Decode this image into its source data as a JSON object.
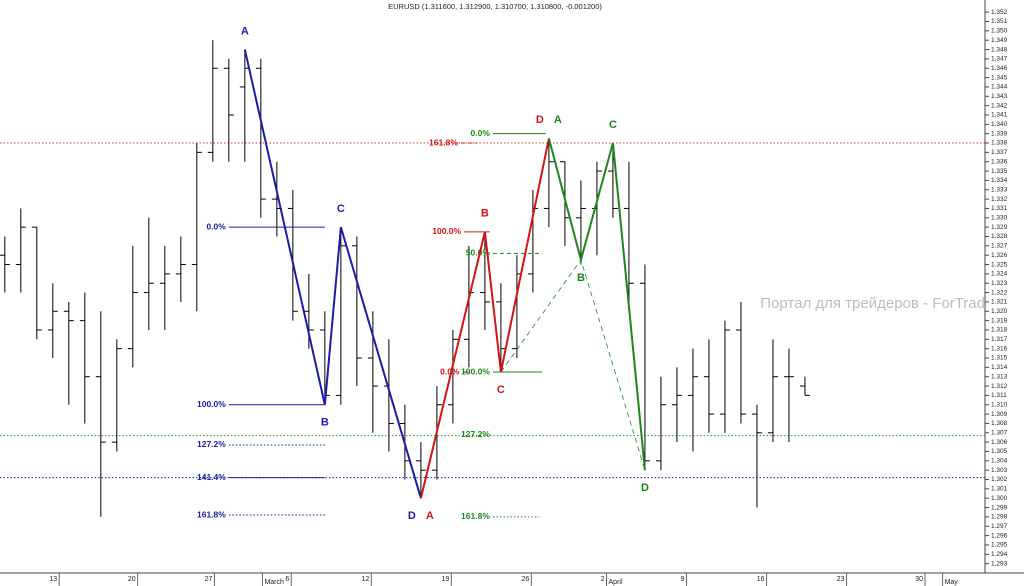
{
  "chart_data": {
    "type": "ohlc",
    "title": "EURUSD (1.311600, 1.312900, 1.310700, 1.310800, -0.001200)",
    "watermark": "Портал для трейдеров - ForTrader.ru",
    "color": "#000000",
    "xlim": [
      -0.3,
      61.25
    ],
    "ylim": [
      1.292,
      1.3533
    ],
    "xticks": [
      {
        "value": 3.4,
        "label": "13"
      },
      {
        "value": 8.3,
        "label": "20"
      },
      {
        "value": 13.1,
        "label": "27"
      },
      {
        "value": 17.9,
        "label": "6"
      },
      {
        "value": 22.9,
        "label": "12"
      },
      {
        "value": 27.9,
        "label": "19"
      },
      {
        "value": 32.9,
        "label": "26"
      },
      {
        "value": 37.6,
        "label": "2"
      },
      {
        "value": 42.6,
        "label": "9"
      },
      {
        "value": 47.6,
        "label": "16"
      },
      {
        "value": 52.6,
        "label": "23"
      },
      {
        "value": 57.5,
        "label": "30"
      }
    ],
    "month_ticks": [
      {
        "value": 16.1,
        "label": "March"
      },
      {
        "value": 37.6,
        "label": "April"
      },
      {
        "value": 58.6,
        "label": "May"
      }
    ],
    "yticks": [
      1.293,
      1.294,
      1.295,
      1.296,
      1.297,
      1.298,
      1.299,
      {
        "value": 1.3,
        "label": "1.300"
      },
      1.301,
      1.302,
      1.303,
      1.304,
      1.305,
      1.306,
      1.307,
      1.308,
      1.309,
      {
        "value": 1.31,
        "label": "1.310"
      },
      1.311,
      1.312,
      1.313,
      1.314,
      1.315,
      1.316,
      1.317,
      1.318,
      1.319,
      {
        "value": 1.32,
        "label": "1.320"
      },
      1.321,
      1.322,
      1.323,
      1.324,
      1.325,
      1.326,
      1.327,
      1.328,
      1.329,
      {
        "value": 1.33,
        "label": "1.330"
      },
      1.331,
      1.332,
      1.333,
      1.334,
      1.335,
      1.336,
      1.337,
      1.338,
      1.339,
      {
        "value": 1.34,
        "label": "1.340"
      },
      1.341,
      1.342,
      1.343,
      1.344,
      1.345,
      1.346,
      1.347,
      1.348,
      1.349,
      {
        "value": 1.35,
        "label": "1.350"
      },
      1.351,
      1.352
    ],
    "x": [
      0,
      1,
      2,
      3,
      4,
      5,
      6,
      7,
      8,
      9,
      10,
      11,
      12,
      13,
      14,
      15,
      16,
      17,
      18,
      19,
      20,
      21,
      22,
      23,
      24,
      25,
      26,
      27,
      28,
      29,
      30,
      31,
      32,
      33,
      34,
      35,
      36,
      37,
      38,
      39,
      40,
      41,
      42,
      43,
      44,
      45,
      46,
      47,
      48,
      49,
      50
    ],
    "bars": [
      [
        1.326,
        1.328,
        1.322,
        1.325
      ],
      [
        1.325,
        1.331,
        1.322,
        1.329
      ],
      [
        1.329,
        1.329,
        1.317,
        1.318
      ],
      [
        1.318,
        1.323,
        1.315,
        1.32
      ],
      [
        1.32,
        1.321,
        1.31,
        1.319
      ],
      [
        1.319,
        1.322,
        1.308,
        1.313
      ],
      [
        1.313,
        1.32,
        1.298,
        1.306
      ],
      [
        1.306,
        1.317,
        1.305,
        1.316
      ],
      [
        1.316,
        1.327,
        1.314,
        1.322
      ],
      [
        1.322,
        1.33,
        1.318,
        1.323
      ],
      [
        1.323,
        1.327,
        1.318,
        1.324
      ],
      [
        1.324,
        1.328,
        1.321,
        1.325
      ],
      [
        1.325,
        1.338,
        1.32,
        1.337
      ],
      [
        1.337,
        1.349,
        1.336,
        1.346
      ],
      [
        1.346,
        1.347,
        1.336,
        1.341
      ],
      [
        1.344,
        1.348,
        1.336,
        1.346
      ],
      [
        1.346,
        1.347,
        1.33,
        1.332
      ],
      [
        1.332,
        1.336,
        1.328,
        1.331
      ],
      [
        1.331,
        1.333,
        1.319,
        1.32
      ],
      [
        1.32,
        1.324,
        1.316,
        1.318
      ],
      [
        1.318,
        1.32,
        1.31,
        1.311
      ],
      [
        1.311,
        1.329,
        1.31,
        1.327
      ],
      [
        1.327,
        1.328,
        1.312,
        1.315
      ],
      [
        1.315,
        1.32,
        1.307,
        1.312
      ],
      [
        1.312,
        1.317,
        1.305,
        1.308
      ],
      [
        1.308,
        1.31,
        1.302,
        1.304
      ],
      [
        1.304,
        1.306,
        1.3,
        1.303
      ],
      [
        1.303,
        1.312,
        1.302,
        1.31
      ],
      [
        1.31,
        1.318,
        1.308,
        1.317
      ],
      [
        1.317,
        1.327,
        1.314,
        1.322
      ],
      [
        1.322,
        1.328,
        1.318,
        1.321
      ],
      [
        1.321,
        1.323,
        1.314,
        1.316
      ],
      [
        1.316,
        1.326,
        1.315,
        1.324
      ],
      [
        1.324,
        1.333,
        1.322,
        1.331
      ],
      [
        1.331,
        1.338,
        1.329,
        1.336
      ],
      [
        1.336,
        1.336,
        1.327,
        1.33
      ],
      [
        1.33,
        1.334,
        1.325,
        1.331
      ],
      [
        1.331,
        1.336,
        1.326,
        1.335
      ],
      [
        1.335,
        1.338,
        1.33,
        1.331
      ],
      [
        1.331,
        1.336,
        1.32,
        1.323
      ],
      [
        1.323,
        1.325,
        1.303,
        1.304
      ],
      [
        1.304,
        1.313,
        1.303,
        1.31
      ],
      [
        1.31,
        1.314,
        1.306,
        1.311
      ],
      [
        1.311,
        1.316,
        1.305,
        1.313
      ],
      [
        1.313,
        1.317,
        1.307,
        1.309
      ],
      [
        1.309,
        1.319,
        1.307,
        1.318
      ],
      [
        1.318,
        1.321,
        1.308,
        1.309
      ],
      [
        1.309,
        1.31,
        1.299,
        1.307
      ],
      [
        1.307,
        1.317,
        1.306,
        1.313
      ],
      [
        1.313,
        1.316,
        1.306,
        1.313
      ],
      [
        1.312,
        1.313,
        1.311,
        1.311
      ]
    ],
    "hlines": [
      {
        "value": 1.338,
        "color": "#e03030"
      },
      {
        "value": 1.3067,
        "color": "#2a9a2a"
      },
      {
        "value": 1.3022,
        "color": "#2020a0"
      }
    ],
    "patterns": [
      {
        "color": "#1c1ca8",
        "points": [
          {
            "label": "A",
            "x": 15,
            "y": 1.348
          },
          {
            "label": "B",
            "x": 20,
            "y": 1.31
          },
          {
            "label": "C",
            "x": 21,
            "y": 1.329
          },
          {
            "label": "D",
            "x": 26,
            "y": 1.3
          }
        ]
      },
      {
        "color": "#d21414",
        "points": [
          {
            "label": "A",
            "x": 26,
            "y": 1.3
          },
          {
            "label": "B",
            "x": 30,
            "y": 1.3285
          },
          {
            "label": "C",
            "x": 31,
            "y": 1.3135
          },
          {
            "label": "D",
            "x": 34,
            "y": 1.3385
          }
        ]
      },
      {
        "color": "#1e861e",
        "points": [
          {
            "label": "A",
            "x": 34,
            "y": 1.3385
          },
          {
            "label": "B",
            "x": 36,
            "y": 1.3255
          },
          {
            "label": "C",
            "x": 38,
            "y": 1.338
          },
          {
            "label": "D",
            "x": 40,
            "y": 1.303
          }
        ]
      }
    ],
    "dashed_path": {
      "color": "#1e861e",
      "x": [
        31,
        36,
        40
      ],
      "y": [
        1.3135,
        1.3255,
        1.303
      ]
    },
    "levels": [
      {
        "label": "0.0%",
        "value": 1.329,
        "x0": 14,
        "x1": 20,
        "color": "#1c1ca8",
        "style": "solid"
      },
      {
        "label": "100.0%",
        "value": 1.31,
        "x0": 14,
        "x1": 20,
        "color": "#1c1ca8",
        "style": "solid"
      },
      {
        "label": "127.2%",
        "value": 1.3057,
        "x0": 14,
        "x1": 20,
        "color": "#1c1ca8",
        "style": "dotted"
      },
      {
        "label": "141.4%",
        "value": 1.3022,
        "x0": 14,
        "x1": 20,
        "color": "#1c1ca8",
        "style": "solid"
      },
      {
        "label": "161.8%",
        "value": 1.2982,
        "x0": 14,
        "x1": 20,
        "color": "#1c1ca8",
        "style": "dotted"
      },
      {
        "label": "161.8%",
        "value": 1.338,
        "x0": 28.5,
        "x1": 29.5,
        "color": "#d21414",
        "style": "dashed"
      },
      {
        "label": "100.0%",
        "value": 1.3285,
        "x0": 28.7,
        "x1": 30.3,
        "color": "#d21414",
        "style": "solid"
      },
      {
        "label": "0.0%",
        "value": 1.3135,
        "x0": 28.6,
        "x1": 29,
        "color": "#d21414",
        "style": "solid"
      },
      {
        "label": "0.0%",
        "value": 1.339,
        "x0": 30.5,
        "x1": 33.8,
        "color": "#1e861e",
        "style": "solid"
      },
      {
        "label": "50.0%",
        "value": 1.3262,
        "x0": 30.5,
        "x1": 33.6,
        "color": "#1e861e",
        "style": "dashed"
      },
      {
        "label": "100.0%",
        "value": 1.3135,
        "x0": 30.5,
        "x1": 33.6,
        "color": "#1e861e",
        "style": "solid"
      },
      {
        "label": "127.2%",
        "value": 1.3068,
        "x0": 30.5,
        "x1": 30.5,
        "color": "#1e861e",
        "style": "dotted"
      },
      {
        "label": "161.8%",
        "value": 1.298,
        "x0": 30.5,
        "x1": 33.4,
        "color": "#1e861e",
        "style": "dotted"
      }
    ]
  }
}
